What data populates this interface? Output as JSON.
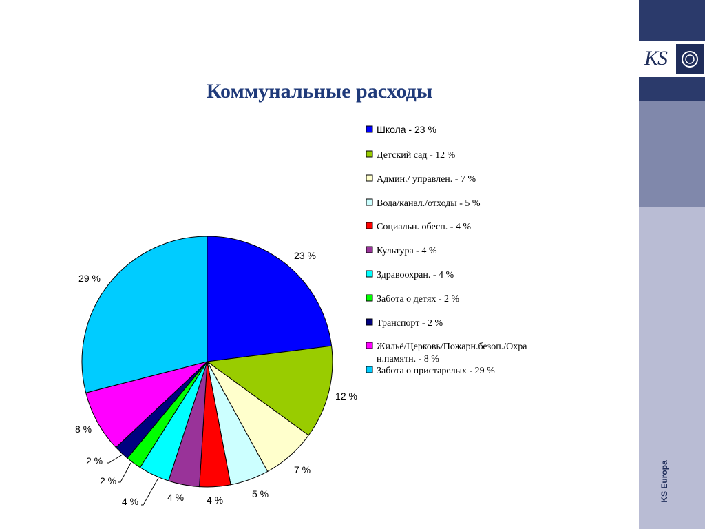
{
  "title": "Коммунальные расходы",
  "brand": {
    "vertical_text": "KS Europa",
    "logo_text": "KS"
  },
  "chart_data": {
    "type": "pie",
    "title": "Коммунальные расходы",
    "legend_placement": "right",
    "slices": [
      {
        "legend": "Школа - 23 %",
        "label": "23 %",
        "value": 23,
        "color": "#0000ff"
      },
      {
        "legend": "Детский сад - 12 %",
        "label": "12 %",
        "value": 12,
        "color": "#99cc00"
      },
      {
        "legend": "Админ./ управлен. - 7 %",
        "label": "7 %",
        "value": 7,
        "color": "#ffffcc"
      },
      {
        "legend": "Вода/канал./отходы - 5 %",
        "label": "5 %",
        "value": 5,
        "color": "#ccffff"
      },
      {
        "legend": "Социальн. обесп. - 4 %",
        "label": "4 %",
        "value": 4,
        "color": "#ff0000"
      },
      {
        "legend": "Культура - 4 %",
        "label": "4 %",
        "value": 4,
        "color": "#993399"
      },
      {
        "legend": "Здравоохран. - 4 %",
        "label": "4 %",
        "value": 4,
        "color": "#00ffff"
      },
      {
        "legend": "Забота о детях - 2 %",
        "label": "2 %",
        "value": 2,
        "color": "#00ff00"
      },
      {
        "legend": "Транспорт - 2 %",
        "label": "2 %",
        "value": 2,
        "color": "#000080"
      },
      {
        "legend": "Жильё/Церковь/Пожарн.безоп./Охра н.памятн. - 8 %",
        "legend_lines": [
          "Жильё/Церковь/Пожарн.безоп./Охра",
          "н.памятн. - 8 %"
        ],
        "label": "8 %",
        "value": 8,
        "color": "#ff00ff"
      },
      {
        "legend": "Забота о пристарелых - 29 %",
        "label": "29 %",
        "value": 29,
        "color": "#00ccff"
      }
    ]
  },
  "colors": {
    "title": "#1f3a7a",
    "sidebar_top": "#2b3a6b",
    "sidebar_mid": "#8088ab",
    "sidebar_low": "#b9bcd4"
  }
}
